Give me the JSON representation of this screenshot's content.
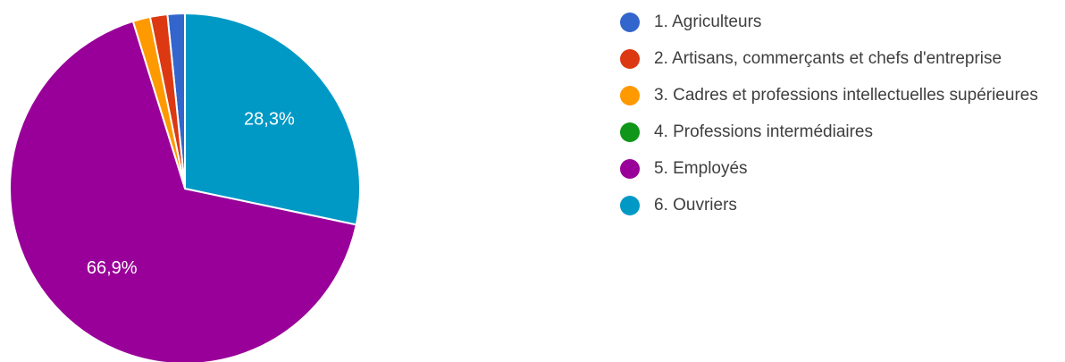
{
  "chart_data": {
    "type": "pie",
    "categories": [
      "1. Agriculteurs",
      "2. Artisans, commerçants et chefs d'entreprise",
      "3. Cadres et professions intellectuelles supérieures",
      "4. Professions intermédiaires",
      "5. Employés",
      "6. Ouvriers"
    ],
    "values": [
      1.6,
      1.6,
      1.6,
      0,
      66.9,
      28.3
    ],
    "data_labels": [
      "",
      "",
      "",
      "",
      "66,9%",
      "28,3%"
    ],
    "colors": [
      "#3366cc",
      "#dc3912",
      "#ff9900",
      "#109618",
      "#990099",
      "#0099c6"
    ],
    "start_angle_deg": 90,
    "direction": "counterclockwise",
    "legend_position": "right"
  }
}
